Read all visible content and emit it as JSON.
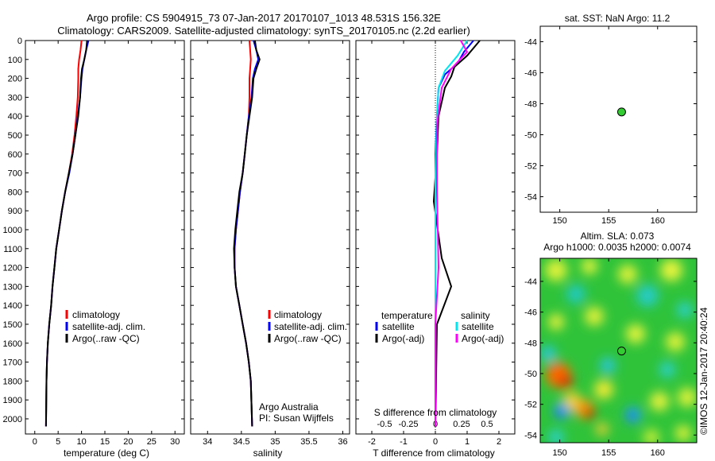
{
  "title_line1": "Argo profile: CS 5904915_73 07-Jan-2017 20170107_1013 48.531S 156.32E",
  "title_line2": "Climatology: CARS2009. Satellite-adjusted climatology: synTS_20170105.nc (2.2d earlier)",
  "side_label": "©IMOS 12-Jan-2017 20:40:24",
  "colors": {
    "climatology": "#ff0000",
    "satellite": "#0000ff",
    "argo": "#000000",
    "salinity_satellite": "#00e5ee",
    "salinity_argo": "#ff00ff",
    "location_marker": "#33cc33"
  },
  "chart_data": [
    {
      "type": "line",
      "name": "temperature-panel",
      "xlabel": "temperature (deg C)",
      "ylabel": "",
      "xlim": [
        -2,
        32
      ],
      "ylim": [
        2080,
        0
      ],
      "xticks": [
        0,
        5,
        10,
        15,
        20,
        25,
        30
      ],
      "yticks": [
        0,
        100,
        200,
        300,
        400,
        500,
        600,
        700,
        800,
        900,
        1000,
        1100,
        1200,
        1300,
        1400,
        1500,
        1600,
        1700,
        1800,
        1900,
        2000
      ],
      "legend": [
        "climatology",
        "satellite-adj. clim.",
        "Argo(..raw -QC)"
      ],
      "series": [
        {
          "name": "climatology",
          "color": "#ff0000",
          "x": [
            10.0,
            9.8,
            9.5,
            9.3,
            9.3,
            9.2,
            8.9,
            8.5,
            8.0,
            7.3,
            6.5,
            5.8,
            5.2,
            4.6,
            4.2,
            3.8,
            3.5,
            3.1,
            2.8,
            2.6,
            2.5,
            2.4
          ],
          "y": [
            0,
            50,
            100,
            150,
            200,
            300,
            400,
            500,
            600,
            700,
            800,
            900,
            1000,
            1100,
            1200,
            1300,
            1400,
            1500,
            1600,
            1700,
            1800,
            2040
          ]
        },
        {
          "name": "satellite-adj. clim.",
          "color": "#0000ff",
          "x": [
            11.5,
            11.0,
            10.6,
            10.2,
            10.0,
            9.7,
            9.2,
            8.7,
            8.1,
            7.4,
            6.5,
            5.8,
            5.2,
            4.6,
            4.2,
            3.8,
            3.5,
            3.1,
            2.8,
            2.6,
            2.5,
            2.4
          ],
          "y": [
            0,
            50,
            100,
            150,
            200,
            300,
            400,
            500,
            600,
            700,
            800,
            900,
            1000,
            1100,
            1200,
            1300,
            1400,
            1500,
            1600,
            1700,
            1800,
            2040
          ]
        },
        {
          "name": "Argo(..raw -QC)",
          "color": "#000000",
          "x": [
            11.2,
            11.0,
            10.6,
            10.1,
            9.9,
            9.7,
            9.3,
            8.7,
            8.1,
            7.3,
            6.5,
            5.8,
            5.2,
            4.6,
            4.2,
            3.8,
            3.5,
            3.1,
            2.8,
            2.6,
            2.5,
            2.4
          ],
          "y": [
            0,
            50,
            100,
            150,
            200,
            300,
            400,
            500,
            600,
            700,
            800,
            900,
            1000,
            1100,
            1200,
            1300,
            1400,
            1500,
            1600,
            1700,
            1800,
            2040
          ]
        }
      ]
    },
    {
      "type": "line",
      "name": "salinity-panel",
      "xlabel": "salinity",
      "ylabel": "",
      "xlim": [
        33.75,
        36.1
      ],
      "ylim": [
        2080,
        0
      ],
      "xticks": [
        34,
        34.5,
        35,
        35.5,
        36
      ],
      "legend": [
        "climatology",
        "satellite-adj. clim.",
        "Argo(..raw -QC)"
      ],
      "annotation": [
        "Argo Australia",
        "PI: Susan Wijffels"
      ],
      "series": [
        {
          "name": "climatology",
          "color": "#ff0000",
          "x": [
            34.62,
            34.63,
            34.64,
            34.63,
            34.62,
            34.62,
            34.61,
            34.58,
            34.55,
            34.52,
            34.48,
            34.45,
            34.42,
            34.4,
            34.4,
            34.42,
            34.47,
            34.52,
            34.57,
            34.61,
            34.64,
            34.66
          ],
          "y": [
            0,
            50,
            100,
            150,
            200,
            300,
            400,
            500,
            600,
            700,
            800,
            900,
            1000,
            1100,
            1200,
            1300,
            1400,
            1500,
            1600,
            1700,
            1800,
            2040
          ]
        },
        {
          "name": "satellite-adj. clim.",
          "color": "#0000ff",
          "x": [
            34.68,
            34.72,
            34.75,
            34.7,
            34.67,
            34.65,
            34.61,
            34.58,
            34.55,
            34.52,
            34.48,
            34.45,
            34.42,
            34.4,
            34.4,
            34.42,
            34.47,
            34.52,
            34.57,
            34.61,
            34.64,
            34.66
          ],
          "y": [
            0,
            50,
            100,
            150,
            200,
            300,
            400,
            500,
            600,
            700,
            800,
            900,
            1000,
            1100,
            1200,
            1300,
            1400,
            1500,
            1600,
            1700,
            1800,
            2040
          ]
        },
        {
          "name": "Argo(..raw -QC)",
          "color": "#000000",
          "x": [
            34.7,
            34.72,
            34.77,
            34.72,
            34.68,
            34.66,
            34.62,
            34.58,
            34.55,
            34.52,
            34.47,
            34.44,
            34.41,
            34.39,
            34.4,
            34.42,
            34.47,
            34.52,
            34.57,
            34.61,
            34.64,
            34.66
          ],
          "y": [
            0,
            50,
            100,
            150,
            200,
            300,
            400,
            500,
            600,
            700,
            800,
            900,
            1000,
            1100,
            1200,
            1300,
            1400,
            1500,
            1600,
            1700,
            1800,
            2040
          ]
        }
      ]
    },
    {
      "type": "line",
      "name": "difference-panel",
      "xlabel": "T difference from climatology",
      "xlabel_top": "S difference from climatology",
      "ylabel": "",
      "xlim": [
        -2.5,
        2.5
      ],
      "ylim": [
        2080,
        0
      ],
      "xticks": [
        -2,
        -1,
        0,
        1,
        2
      ],
      "xticks_top": [
        "-0.5",
        "-0.25",
        "0",
        "0.25",
        "0.5"
      ],
      "legend_temperature": {
        "heading": "temperature",
        "items": [
          "satellite",
          "Argo(-adj)"
        ]
      },
      "legend_salinity": {
        "heading": "salinity",
        "items": [
          "satellite",
          "Argo(-adj)"
        ]
      },
      "series": [
        {
          "name": "temperature satellite",
          "color": "#0000ff",
          "x": [
            1.2,
            0.9,
            0.7,
            0.3,
            0.1,
            0.05,
            0.0,
            0.0,
            0.0,
            0.0,
            0.0,
            0.0
          ],
          "y": [
            0,
            60,
            120,
            180,
            250,
            400,
            600,
            900,
            1200,
            1500,
            1800,
            2040
          ]
        },
        {
          "name": "temperature Argo(-adj)",
          "color": "#000000",
          "x": [
            1.4,
            1.0,
            0.6,
            0.5,
            0.3,
            0.1,
            0.05,
            -0.05,
            0.2,
            0.5,
            0.05,
            0.0
          ],
          "y": [
            0,
            80,
            140,
            190,
            250,
            400,
            600,
            850,
            1150,
            1300,
            1500,
            2040
          ]
        },
        {
          "name": "salinity satellite",
          "color": "#00e5ee",
          "x": [
            1.0,
            0.7,
            0.3,
            0.1,
            0.05,
            0.0,
            0.0,
            0.0,
            0.0
          ],
          "y": [
            0,
            80,
            160,
            250,
            400,
            700,
            1100,
            1500,
            2040
          ]
        },
        {
          "name": "salinity Argo(-adj)",
          "color": "#ff00ff",
          "x": [
            0.8,
            1.0,
            0.5,
            0.2,
            0.05,
            0.05,
            0.1,
            0.0,
            0.0
          ],
          "y": [
            0,
            60,
            150,
            250,
            450,
            800,
            1200,
            1500,
            2040
          ]
        }
      ]
    },
    {
      "type": "scatter",
      "name": "location-map",
      "title": "sat. SST: NaN Argo: 11.2",
      "xlim": [
        148,
        164
      ],
      "ylim": [
        -55,
        -43
      ],
      "xticks": [
        150,
        155,
        160
      ],
      "yticks": [
        -44,
        -46,
        -48,
        -50,
        -52,
        -54
      ],
      "points": [
        {
          "x": 156.32,
          "y": -48.531
        }
      ]
    },
    {
      "type": "heatmap",
      "name": "sla-map",
      "title": "Altim. SLA: 0.073",
      "subtitle": "Argo h1000: 0.0035 h2000: 0.0074",
      "xlim": [
        148,
        164
      ],
      "ylim": [
        -54.5,
        -42.5
      ],
      "xticks": [
        150,
        155,
        160
      ],
      "yticks": [
        -44,
        -46,
        -48,
        -50,
        -52,
        -54
      ],
      "points": [
        {
          "x": 156.32,
          "y": -48.531
        }
      ]
    }
  ]
}
